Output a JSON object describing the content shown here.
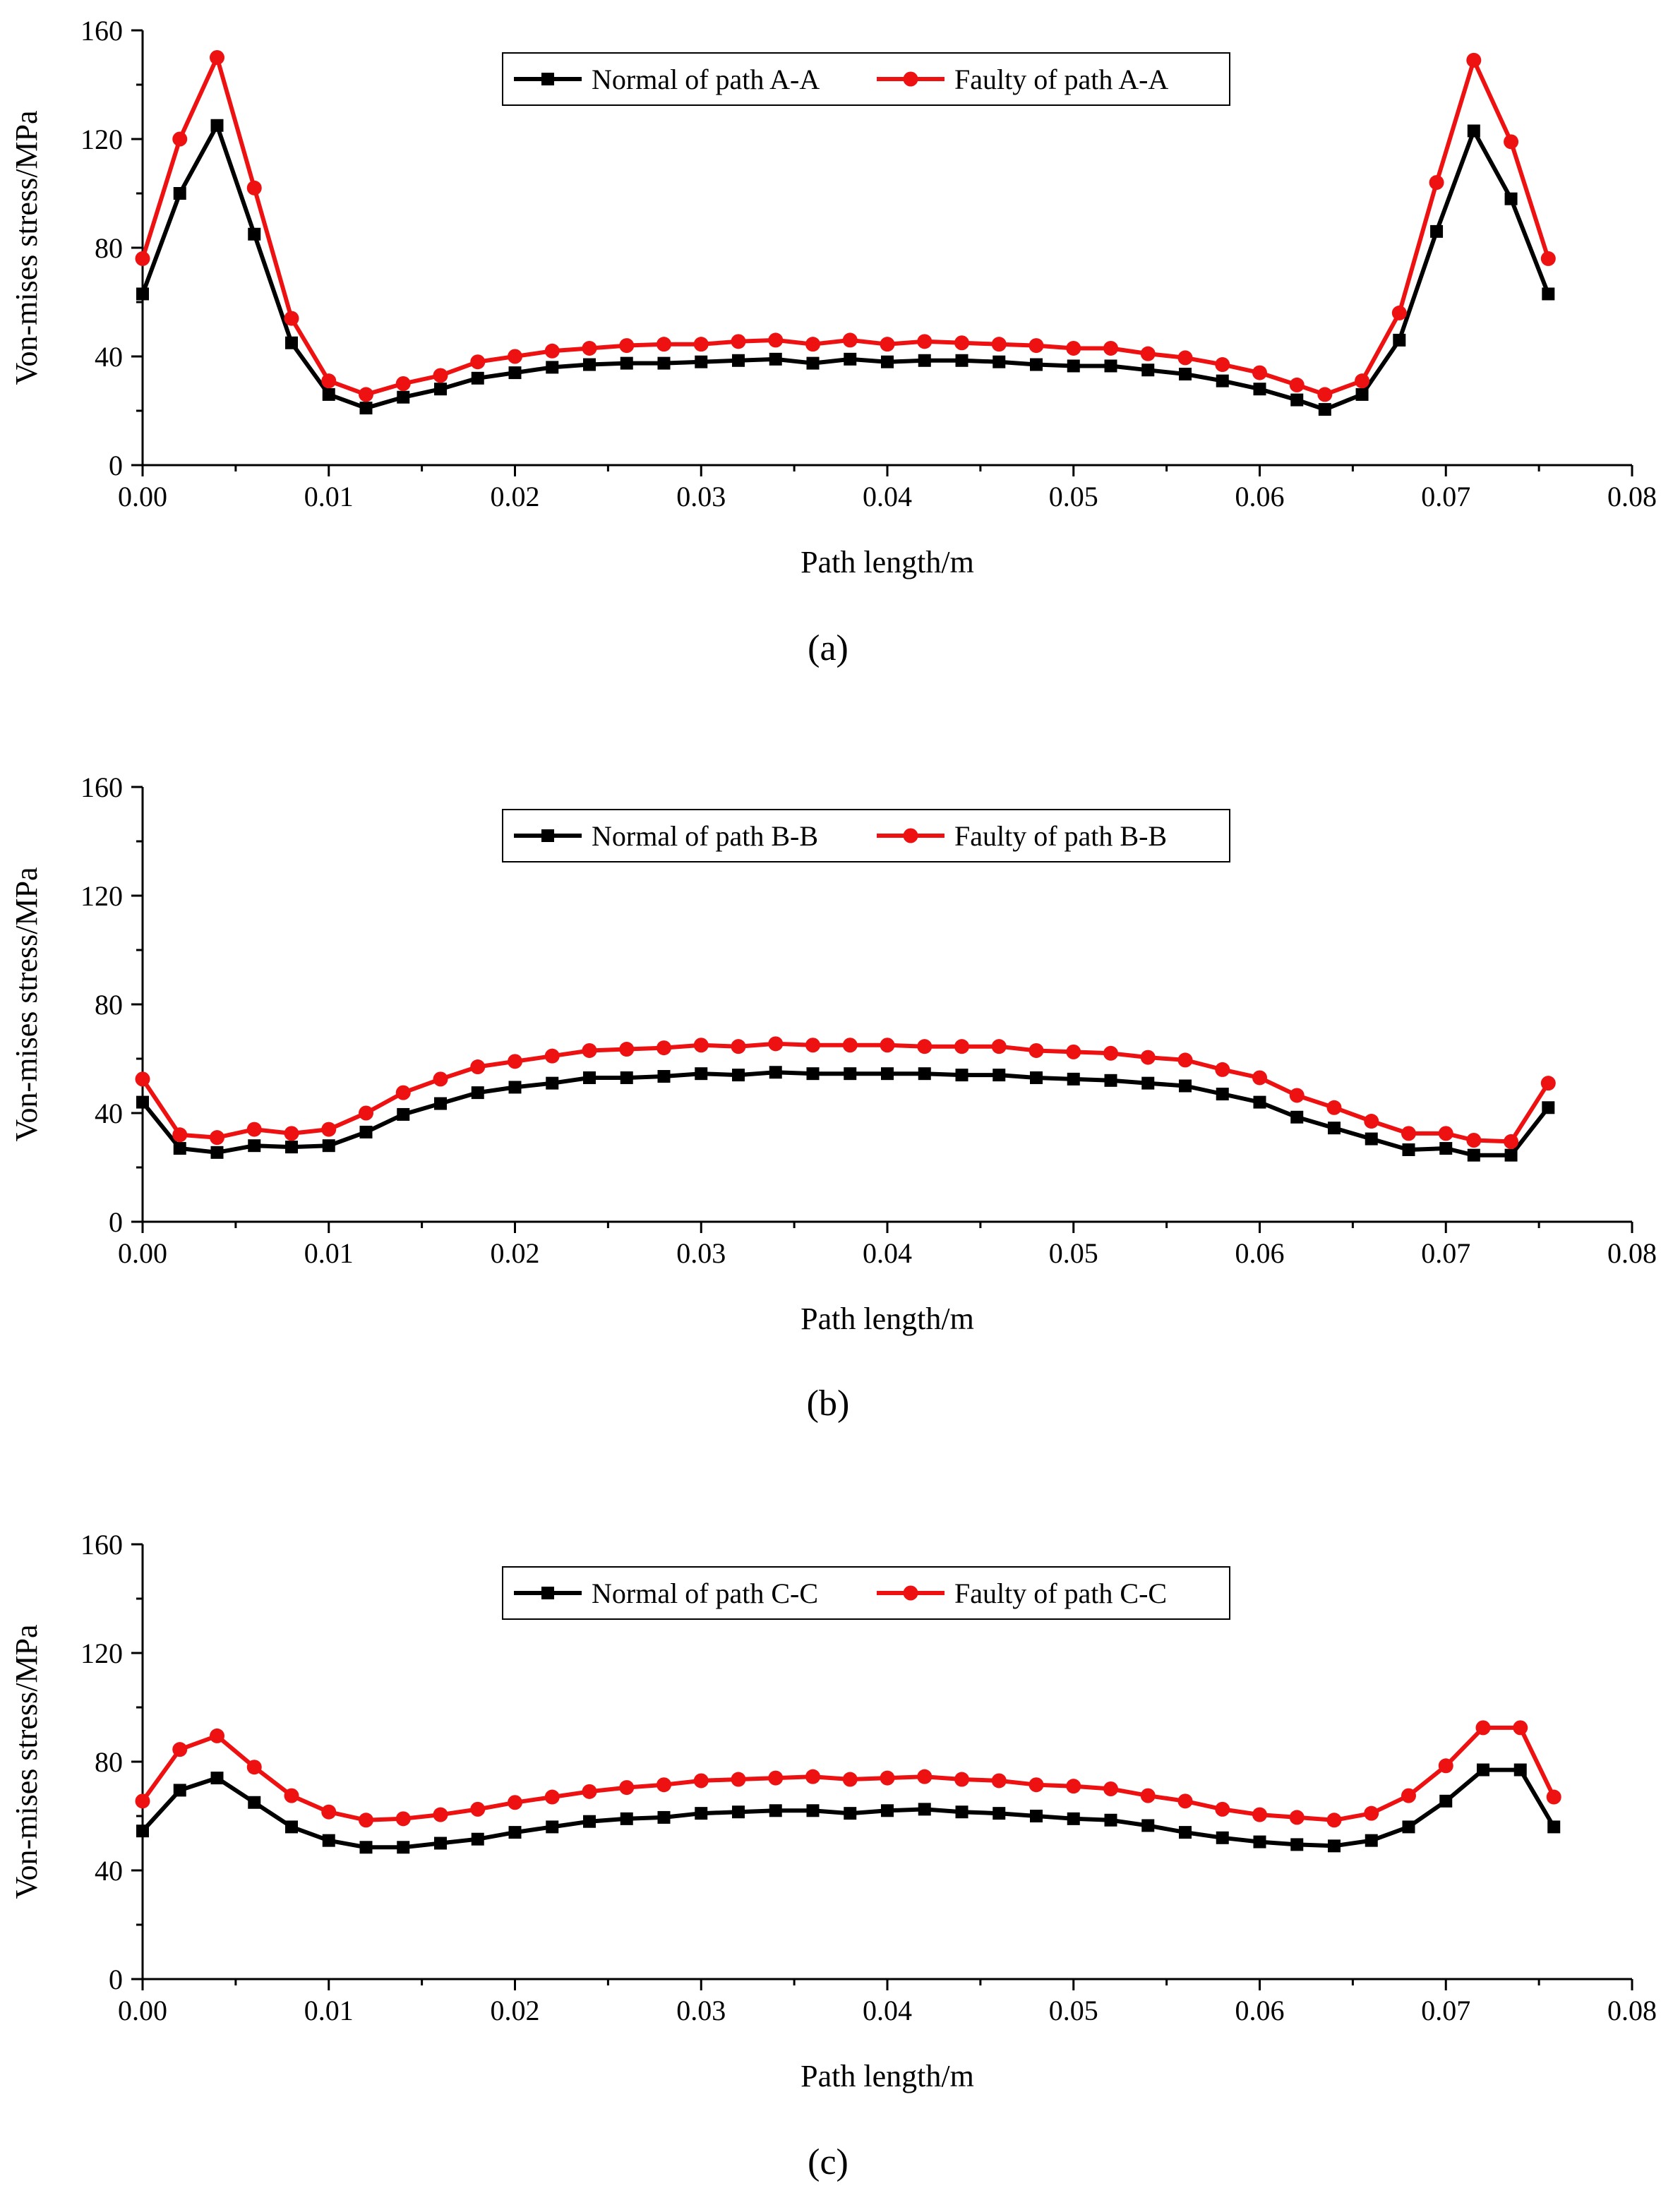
{
  "chart_data": [
    {
      "type": "line",
      "panel_label": "(a)",
      "xlabel": "Path length/m",
      "ylabel": "Von-mises stress/MPa",
      "xlim": [
        0.0,
        0.08
      ],
      "ylim": [
        0,
        160
      ],
      "xticks": [
        "0.00",
        "0.01",
        "0.02",
        "0.03",
        "0.04",
        "0.05",
        "0.06",
        "0.07",
        "0.08"
      ],
      "yticks": [
        "0",
        "40",
        "80",
        "120",
        "160"
      ],
      "legend_position": "top-center",
      "grid": false,
      "series": [
        {
          "name": "Normal of path A-A",
          "color": "#000000",
          "marker": "square",
          "x": [
            0.0,
            0.002,
            0.004,
            0.006,
            0.008,
            0.01,
            0.012,
            0.014,
            0.016,
            0.018,
            0.02,
            0.022,
            0.024,
            0.026,
            0.028,
            0.03,
            0.032,
            0.034,
            0.036,
            0.038,
            0.04,
            0.042,
            0.044,
            0.046,
            0.048,
            0.05,
            0.052,
            0.054,
            0.056,
            0.058,
            0.06,
            0.062,
            0.0635,
            0.0655,
            0.0675,
            0.0695,
            0.0715,
            0.0735,
            0.0755
          ],
          "y": [
            63,
            100,
            125,
            85,
            45,
            26,
            21,
            25,
            28,
            32,
            34,
            36,
            37,
            37.5,
            37.5,
            38,
            38.5,
            39,
            37.5,
            39,
            38,
            38.5,
            38.5,
            38,
            37,
            36.5,
            36.5,
            35,
            33.5,
            31,
            28,
            24,
            20.5,
            26,
            46,
            86,
            123,
            98,
            63
          ]
        },
        {
          "name": "Faulty of path A-A",
          "color": "#ee1111",
          "marker": "circle",
          "x": [
            0.0,
            0.002,
            0.004,
            0.006,
            0.008,
            0.01,
            0.012,
            0.014,
            0.016,
            0.018,
            0.02,
            0.022,
            0.024,
            0.026,
            0.028,
            0.03,
            0.032,
            0.034,
            0.036,
            0.038,
            0.04,
            0.042,
            0.044,
            0.046,
            0.048,
            0.05,
            0.052,
            0.054,
            0.056,
            0.058,
            0.06,
            0.062,
            0.0635,
            0.0655,
            0.0675,
            0.0695,
            0.0715,
            0.0735,
            0.0755
          ],
          "y": [
            76,
            120,
            150,
            102,
            54,
            31,
            26,
            30,
            33,
            38,
            40,
            42,
            43,
            44,
            44.5,
            44.5,
            45.5,
            46,
            44.5,
            46,
            44.5,
            45.5,
            45,
            44.5,
            44,
            43,
            43,
            41,
            39.5,
            37,
            34,
            29.5,
            26,
            31,
            56,
            104,
            149,
            119,
            76
          ]
        }
      ]
    },
    {
      "type": "line",
      "panel_label": "(b)",
      "xlabel": "Path length/m",
      "ylabel": "Von-mises stress/MPa",
      "xlim": [
        0.0,
        0.08
      ],
      "ylim": [
        0,
        160
      ],
      "xticks": [
        "0.00",
        "0.01",
        "0.02",
        "0.03",
        "0.04",
        "0.05",
        "0.06",
        "0.07",
        "0.08"
      ],
      "yticks": [
        "0",
        "40",
        "80",
        "120",
        "160"
      ],
      "legend_position": "top-center",
      "grid": false,
      "series": [
        {
          "name": "Normal of path B-B",
          "color": "#000000",
          "marker": "square",
          "x": [
            0.0,
            0.002,
            0.004,
            0.006,
            0.008,
            0.01,
            0.012,
            0.014,
            0.016,
            0.018,
            0.02,
            0.022,
            0.024,
            0.026,
            0.028,
            0.03,
            0.032,
            0.034,
            0.036,
            0.038,
            0.04,
            0.042,
            0.044,
            0.046,
            0.048,
            0.05,
            0.052,
            0.054,
            0.056,
            0.058,
            0.06,
            0.062,
            0.064,
            0.066,
            0.068,
            0.07,
            0.0715,
            0.0735,
            0.0755
          ],
          "y": [
            44,
            27,
            25.5,
            28,
            27.5,
            28,
            33,
            39.5,
            43.5,
            47.5,
            49.5,
            51,
            53,
            53,
            53.5,
            54.5,
            54,
            55,
            54.5,
            54.5,
            54.5,
            54.5,
            54,
            54,
            53,
            52.5,
            52,
            51,
            50,
            47,
            44,
            38.5,
            34.5,
            30.5,
            26.5,
            27,
            24.5,
            24.5,
            42
          ]
        },
        {
          "name": "Faulty of path B-B",
          "color": "#ee1111",
          "marker": "circle",
          "x": [
            0.0,
            0.002,
            0.004,
            0.006,
            0.008,
            0.01,
            0.012,
            0.014,
            0.016,
            0.018,
            0.02,
            0.022,
            0.024,
            0.026,
            0.028,
            0.03,
            0.032,
            0.034,
            0.036,
            0.038,
            0.04,
            0.042,
            0.044,
            0.046,
            0.048,
            0.05,
            0.052,
            0.054,
            0.056,
            0.058,
            0.06,
            0.062,
            0.064,
            0.066,
            0.068,
            0.07,
            0.0715,
            0.0735,
            0.0755
          ],
          "y": [
            52.5,
            32,
            31,
            34,
            32.5,
            34,
            40,
            47.5,
            52.5,
            57,
            59,
            61,
            63,
            63.5,
            64,
            65,
            64.5,
            65.5,
            65,
            65,
            65,
            64.5,
            64.5,
            64.5,
            63,
            62.5,
            62,
            60.5,
            59.5,
            56,
            53,
            46.5,
            42,
            37,
            32.5,
            32.5,
            30,
            29.5,
            51
          ]
        }
      ]
    },
    {
      "type": "line",
      "panel_label": "(c)",
      "xlabel": "Path length/m",
      "ylabel": "Von-mises stress/MPa",
      "xlim": [
        0.0,
        0.08
      ],
      "ylim": [
        0,
        160
      ],
      "xticks": [
        "0.00",
        "0.01",
        "0.02",
        "0.03",
        "0.04",
        "0.05",
        "0.06",
        "0.07",
        "0.08"
      ],
      "yticks": [
        "0",
        "40",
        "80",
        "120",
        "160"
      ],
      "legend_position": "top-center",
      "grid": false,
      "series": [
        {
          "name": "Normal of path C-C",
          "color": "#000000",
          "marker": "square",
          "x": [
            0.0,
            0.002,
            0.004,
            0.006,
            0.008,
            0.01,
            0.012,
            0.014,
            0.016,
            0.018,
            0.02,
            0.022,
            0.024,
            0.026,
            0.028,
            0.03,
            0.032,
            0.034,
            0.036,
            0.038,
            0.04,
            0.042,
            0.044,
            0.046,
            0.048,
            0.05,
            0.052,
            0.054,
            0.056,
            0.058,
            0.06,
            0.062,
            0.064,
            0.066,
            0.068,
            0.07,
            0.072,
            0.074,
            0.0758
          ],
          "y": [
            54.5,
            69.5,
            74,
            65,
            56,
            51,
            48.5,
            48.5,
            50,
            51.5,
            54,
            56,
            58,
            59,
            59.5,
            61,
            61.5,
            62,
            62,
            61,
            62,
            62.5,
            61.5,
            61,
            60,
            59,
            58.5,
            56.5,
            54,
            52,
            50.5,
            49.5,
            49,
            51,
            56,
            65.5,
            77,
            77,
            56
          ]
        },
        {
          "name": "Faulty of path C-C",
          "color": "#ee1111",
          "marker": "circle",
          "x": [
            0.0,
            0.002,
            0.004,
            0.006,
            0.008,
            0.01,
            0.012,
            0.014,
            0.016,
            0.018,
            0.02,
            0.022,
            0.024,
            0.026,
            0.028,
            0.03,
            0.032,
            0.034,
            0.036,
            0.038,
            0.04,
            0.042,
            0.044,
            0.046,
            0.048,
            0.05,
            0.052,
            0.054,
            0.056,
            0.058,
            0.06,
            0.062,
            0.064,
            0.066,
            0.068,
            0.07,
            0.072,
            0.074,
            0.0758
          ],
          "y": [
            65.5,
            84.5,
            89.5,
            78,
            67.5,
            61.5,
            58.5,
            59,
            60.5,
            62.5,
            65,
            67,
            69,
            70.5,
            71.5,
            73,
            73.5,
            74,
            74.5,
            73.5,
            74,
            74.5,
            73.5,
            73,
            71.5,
            71,
            70,
            67.5,
            65.5,
            62.5,
            60.5,
            59.5,
            58.5,
            61,
            67.5,
            78.5,
            92.5,
            92.5,
            67
          ]
        }
      ]
    }
  ]
}
